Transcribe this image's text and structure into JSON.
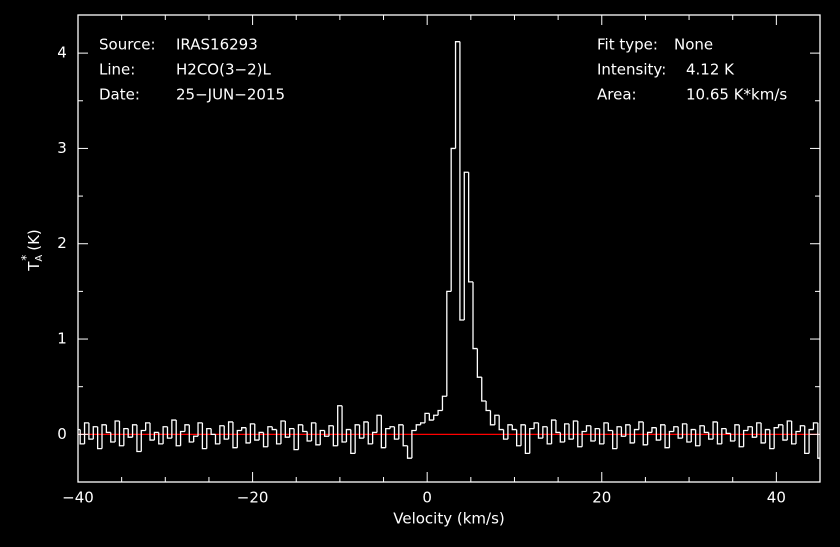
{
  "chart_data": {
    "type": "step",
    "x_label": "Velocity (km/s)",
    "y_label": {
      "symbol": "T",
      "subscript": "A",
      "superscript": "*",
      "unit": "(K)"
    },
    "annotations_left": [
      {
        "label": "Source:",
        "value": "IRAS16293"
      },
      {
        "label": "Line:",
        "value": "H2CO(3−2)L"
      },
      {
        "label": "Date:",
        "value": "25−JUN−2015"
      }
    ],
    "annotations_right": [
      {
        "label": "Fit type:",
        "value": "None"
      },
      {
        "label": "Intensity:",
        "value": "4.12 K"
      },
      {
        "label": "Area:",
        "value": "10.65 K*km/s"
      }
    ],
    "xlim": [
      -40,
      45
    ],
    "ylim": [
      -0.5,
      4.4
    ],
    "xticks": [
      {
        "value": -40,
        "label": "−40"
      },
      {
        "value": -20,
        "label": "−20"
      },
      0,
      20,
      40
    ],
    "yticks": [
      0,
      1,
      2,
      3,
      4
    ],
    "xminorticks": [
      -35,
      -30,
      -25,
      -15,
      -10,
      -5,
      5,
      10,
      15,
      25,
      30,
      35,
      45
    ],
    "yminorticks": [
      -0.5,
      0.5,
      1.5,
      2.5,
      3.5
    ],
    "baseline": 0,
    "baseline_color": "#ff0000",
    "series": [
      {
        "color": "#ffffff",
        "x": [
          -40,
          -39.5,
          -39,
          -38.5,
          -38,
          -37.5,
          -37,
          -36.5,
          -36,
          -35.5,
          -35,
          -34.5,
          -34,
          -33.5,
          -33,
          -32.5,
          -32,
          -31.5,
          -31,
          -30.5,
          -30,
          -29.5,
          -29,
          -28.5,
          -28,
          -27.5,
          -27,
          -26.5,
          -26,
          -25.5,
          -25,
          -24.5,
          -24,
          -23.5,
          -23,
          -22.5,
          -22,
          -21.5,
          -21,
          -20.5,
          -20,
          -19.5,
          -19,
          -18.5,
          -18,
          -17.5,
          -17,
          -16.5,
          -16,
          -15.5,
          -15,
          -14.5,
          -14,
          -13.5,
          -13,
          -12.5,
          -12,
          -11.5,
          -11,
          -10.5,
          -10,
          -9.5,
          -9,
          -8.5,
          -8,
          -7.5,
          -7,
          -6.5,
          -6,
          -5.5,
          -5,
          -4.5,
          -4,
          -3.5,
          -3,
          -2.5,
          -2,
          -1.5,
          -1,
          -0.5,
          0,
          0.5,
          1,
          1.5,
          2,
          2.5,
          3,
          3.5,
          4,
          4.5,
          5,
          5.5,
          6,
          6.5,
          7,
          7.5,
          8,
          8.5,
          9,
          9.5,
          10,
          10.5,
          11,
          11.5,
          12,
          12.5,
          13,
          13.5,
          14,
          14.5,
          15,
          15.5,
          16,
          16.5,
          17,
          17.5,
          18,
          18.5,
          19,
          19.5,
          20,
          20.5,
          21,
          21.5,
          22,
          22.5,
          23,
          23.5,
          24,
          24.5,
          25,
          25.5,
          26,
          26.5,
          27,
          27.5,
          28,
          28.5,
          29,
          29.5,
          30,
          30.5,
          31,
          31.5,
          32,
          32.5,
          33,
          33.5,
          34,
          34.5,
          35,
          35.5,
          36,
          36.5,
          37,
          37.5,
          38,
          38.5,
          39,
          39.5,
          40,
          40.5,
          41,
          41.5,
          42,
          42.5,
          43,
          43.5,
          44,
          44.5,
          45
        ],
        "values": [
          0.05,
          -0.1,
          0.12,
          -0.05,
          0.08,
          -0.15,
          0.1,
          0.02,
          -0.08,
          0.14,
          -0.12,
          0.06,
          -0.03,
          0.1,
          -0.18,
          0.04,
          0.12,
          -0.06,
          0.02,
          -0.1,
          0.08,
          -0.04,
          0.15,
          -0.12,
          0.03,
          0.1,
          -0.08,
          -0.02,
          0.12,
          -0.15,
          0.06,
          0.0,
          -0.1,
          0.09,
          -0.05,
          0.13,
          -0.14,
          0.04,
          0.07,
          -0.09,
          0.11,
          -0.06,
          0.02,
          -0.13,
          0.08,
          0.05,
          -0.1,
          0.14,
          -0.03,
          0.06,
          -0.16,
          0.1,
          0.03,
          -0.07,
          0.12,
          -0.11,
          0.04,
          -0.02,
          0.09,
          -0.12,
          0.3,
          -0.08,
          0.05,
          -0.2,
          0.1,
          -0.04,
          0.13,
          -0.1,
          0.02,
          0.2,
          -0.14,
          0.06,
          0.08,
          -0.05,
          0.1,
          -0.12,
          -0.25,
          0.04,
          0.1,
          0.12,
          0.22,
          0.15,
          0.2,
          0.25,
          0.4,
          1.5,
          3.0,
          4.12,
          1.2,
          2.75,
          1.6,
          0.9,
          0.6,
          0.35,
          0.25,
          0.1,
          0.2,
          0.05,
          -0.05,
          0.1,
          0.05,
          -0.12,
          0.1,
          -0.2,
          0.06,
          0.12,
          -0.04,
          0.08,
          -0.1,
          0.15,
          0.02,
          -0.08,
          0.11,
          -0.05,
          0.14,
          -0.13,
          0.03,
          0.09,
          -0.07,
          0.06,
          -0.1,
          0.12,
          0.04,
          -0.15,
          0.08,
          -0.02,
          0.1,
          -0.09,
          0.05,
          0.13,
          -0.11,
          0.02,
          0.07,
          -0.06,
          0.1,
          -0.14,
          0.03,
          0.08,
          -0.04,
          0.11,
          -0.08,
          0.05,
          -0.12,
          0.09,
          0.02,
          -0.05,
          0.13,
          -0.1,
          0.06,
          0.01,
          -0.07,
          0.1,
          -0.13,
          0.04,
          0.08,
          -0.03,
          0.12,
          -0.09,
          0.05,
          -0.15,
          0.07,
          0.1,
          -0.06,
          0.14,
          -0.1,
          0.03,
          0.09,
          -0.2,
          0.05,
          0.12,
          -0.25
        ]
      }
    ]
  }
}
